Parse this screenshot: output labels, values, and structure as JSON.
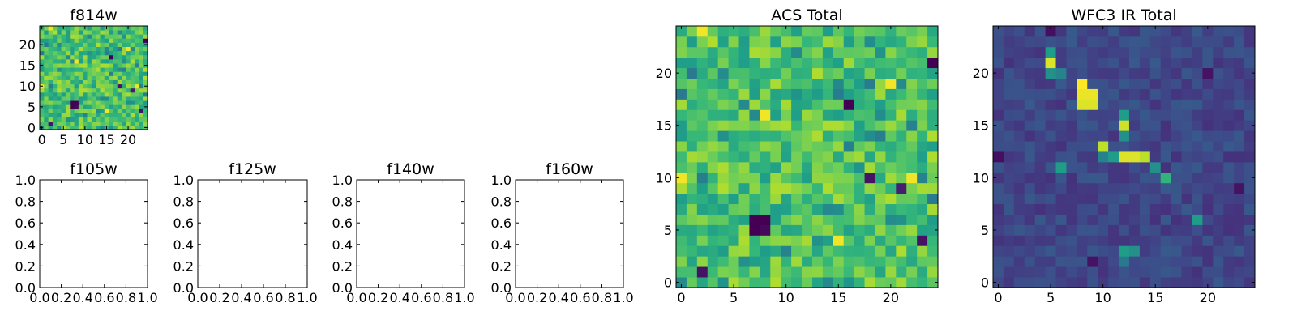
{
  "chart_data": [
    {
      "type": "heatmap",
      "title": "f814w",
      "xlabel": "",
      "ylabel": "",
      "xlim": [
        -0.5,
        24.5
      ],
      "ylim": [
        -0.5,
        24.5
      ],
      "xticks": [
        0,
        5,
        10,
        15,
        20
      ],
      "yticks": [
        0,
        5,
        10,
        15,
        20
      ],
      "grid": false,
      "colormap": "viridis",
      "grid_shape": [
        25,
        25
      ],
      "image_ref": "acs",
      "note": "same map as ACS Total"
    },
    {
      "type": "heatmap",
      "title": "f105w",
      "xlim": [
        0.0,
        1.0
      ],
      "ylim": [
        0.0,
        1.0
      ],
      "xticks": [
        "0.0",
        "0.2",
        "0.4",
        "0.6",
        "0.8",
        "1.0"
      ],
      "yticks": [
        "0.0",
        "0.2",
        "0.4",
        "0.6",
        "0.8",
        "1.0"
      ],
      "grid": false,
      "values": []
    },
    {
      "type": "heatmap",
      "title": "f125w",
      "xlim": [
        0.0,
        1.0
      ],
      "ylim": [
        0.0,
        1.0
      ],
      "xticks": [
        "0.0",
        "0.2",
        "0.4",
        "0.6",
        "0.8",
        "1.0"
      ],
      "yticks": [
        "0.0",
        "0.2",
        "0.4",
        "0.6",
        "0.8",
        "1.0"
      ],
      "grid": false,
      "values": []
    },
    {
      "type": "heatmap",
      "title": "f140w",
      "xlim": [
        0.0,
        1.0
      ],
      "ylim": [
        0.0,
        1.0
      ],
      "xticks": [
        "0.0",
        "0.2",
        "0.4",
        "0.6",
        "0.8",
        "1.0"
      ],
      "yticks": [
        "0.0",
        "0.2",
        "0.4",
        "0.6",
        "0.8",
        "1.0"
      ],
      "grid": false,
      "values": []
    },
    {
      "type": "heatmap",
      "title": "f160w",
      "xlim": [
        0.0,
        1.0
      ],
      "ylim": [
        0.0,
        1.0
      ],
      "xticks": [
        "0.0",
        "0.2",
        "0.4",
        "0.6",
        "0.8",
        "1.0"
      ],
      "yticks": [
        "0.0",
        "0.2",
        "0.4",
        "0.6",
        "0.8",
        "1.0"
      ],
      "grid": false,
      "values": []
    },
    {
      "type": "heatmap",
      "title": "ACS Total",
      "xlim": [
        -0.5,
        24.5
      ],
      "ylim": [
        -0.5,
        24.5
      ],
      "xticks": [
        0,
        5,
        10,
        15,
        20
      ],
      "yticks": [
        0,
        5,
        10,
        15,
        20
      ],
      "grid": false,
      "colormap": "viridis",
      "grid_shape": [
        25,
        25
      ],
      "value_range": [
        0,
        1
      ],
      "image_ref": "acs",
      "notable_cells": [
        {
          "x": 7,
          "y": 6,
          "value": 0.0
        },
        {
          "x": 8,
          "y": 6,
          "value": 0.0
        },
        {
          "x": 7,
          "y": 5,
          "value": 0.0
        },
        {
          "x": 8,
          "y": 5,
          "value": 0.02
        },
        {
          "x": 16,
          "y": 17,
          "value": 0.0
        },
        {
          "x": 24,
          "y": 21,
          "value": 0.0
        },
        {
          "x": 18,
          "y": 10,
          "value": 0.05
        },
        {
          "x": 21,
          "y": 9,
          "value": 0.08
        },
        {
          "x": 2,
          "y": 1,
          "value": 0.05
        },
        {
          "x": 23,
          "y": 4,
          "value": 0.05
        },
        {
          "x": 8,
          "y": 16,
          "value": 0.98
        },
        {
          "x": 15,
          "y": 4,
          "value": 0.98
        },
        {
          "x": 0,
          "y": 10,
          "value": 0.98
        },
        {
          "x": 2,
          "y": 24,
          "value": 0.98
        },
        {
          "x": 20,
          "y": 19,
          "value": 0.98
        },
        {
          "x": 22,
          "y": 10,
          "value": 0.98
        }
      ]
    },
    {
      "type": "heatmap",
      "title": "WFC3 IR Total",
      "xlim": [
        -0.5,
        24.5
      ],
      "ylim": [
        -0.5,
        24.5
      ],
      "xticks": [
        0,
        5,
        10,
        15,
        20
      ],
      "yticks": [
        0,
        5,
        10,
        15,
        20
      ],
      "grid": false,
      "colormap": "viridis",
      "grid_shape": [
        25,
        25
      ],
      "value_range": [
        0,
        1
      ],
      "image_ref": "ir",
      "background_level": 0.22,
      "notable_cells": [
        {
          "x": 8,
          "y": 19,
          "value": 1.0
        },
        {
          "x": 8,
          "y": 18,
          "value": 0.97
        },
        {
          "x": 9,
          "y": 18,
          "value": 0.97
        },
        {
          "x": 8,
          "y": 17,
          "value": 0.95
        },
        {
          "x": 9,
          "y": 17,
          "value": 0.95
        },
        {
          "x": 5,
          "y": 21,
          "value": 0.95
        },
        {
          "x": 5,
          "y": 22,
          "value": 0.55
        },
        {
          "x": 5,
          "y": 20,
          "value": 0.5
        },
        {
          "x": 6,
          "y": 20,
          "value": 0.45
        },
        {
          "x": 12,
          "y": 15,
          "value": 0.93
        },
        {
          "x": 12,
          "y": 16,
          "value": 0.55
        },
        {
          "x": 12,
          "y": 14,
          "value": 0.5
        },
        {
          "x": 12,
          "y": 12,
          "value": 0.95
        },
        {
          "x": 13,
          "y": 12,
          "value": 0.95
        },
        {
          "x": 14,
          "y": 12,
          "value": 0.9
        },
        {
          "x": 10,
          "y": 13,
          "value": 0.9
        },
        {
          "x": 11,
          "y": 12,
          "value": 0.55
        },
        {
          "x": 10,
          "y": 12,
          "value": 0.45
        },
        {
          "x": 15,
          "y": 11,
          "value": 0.5
        },
        {
          "x": 16,
          "y": 10,
          "value": 0.65
        },
        {
          "x": 6,
          "y": 11,
          "value": 0.55
        },
        {
          "x": 19,
          "y": 6,
          "value": 0.55
        },
        {
          "x": 12,
          "y": 3,
          "value": 0.55
        },
        {
          "x": 13,
          "y": 3,
          "value": 0.5
        },
        {
          "x": 12,
          "y": 2,
          "value": 0.4
        },
        {
          "x": 0,
          "y": 12,
          "value": 0.04
        },
        {
          "x": 5,
          "y": 24,
          "value": 0.04
        },
        {
          "x": 20,
          "y": 20,
          "value": 0.05
        },
        {
          "x": 23,
          "y": 9,
          "value": 0.05
        },
        {
          "x": 9,
          "y": 2,
          "value": 0.05
        }
      ]
    }
  ]
}
